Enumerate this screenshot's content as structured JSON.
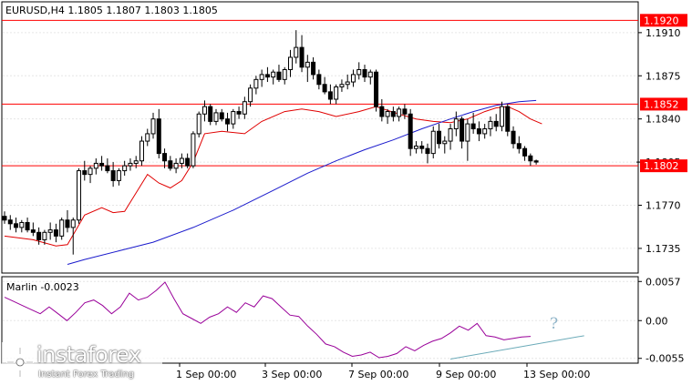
{
  "chart_data": [
    {
      "type": "candlestick",
      "title": "EURUSD,H4  1.1805 1.1807 1.1803 1.1805",
      "symbol": "EURUSD",
      "timeframe": "H4",
      "ohlc_header": {
        "open": 1.1805,
        "high": 1.1807,
        "low": 1.1803,
        "close": 1.1805
      },
      "x_labels": [
        "1 Sep 00:00",
        "3 Sep 00:00",
        "7 Sep 00:00",
        "9 Sep 00:00",
        "13 Sep 00:00"
      ],
      "y_ticks": [
        1.191,
        1.1875,
        1.184,
        1.1805,
        1.177,
        1.1735
      ],
      "ylim": [
        1.1715,
        1.1935
      ],
      "levels": [
        {
          "value": 1.192,
          "label": "1.1920",
          "color": "#ff0000"
        },
        {
          "value": 1.1852,
          "label": "1.1852",
          "color": "#ff0000"
        },
        {
          "value": 1.1802,
          "label": "1.1802",
          "color": "#ff0000"
        }
      ],
      "current_price": 1.1805,
      "candles": [
        [
          1.1761,
          1.1765,
          1.1755,
          1.1758
        ],
        [
          1.1758,
          1.1762,
          1.175,
          1.1755
        ],
        [
          1.1755,
          1.176,
          1.1748,
          1.1752
        ],
        [
          1.1752,
          1.1758,
          1.1748,
          1.1756
        ],
        [
          1.1756,
          1.176,
          1.1748,
          1.175
        ],
        [
          1.175,
          1.1756,
          1.1745,
          1.1748
        ],
        [
          1.1748,
          1.1752,
          1.1738,
          1.1742
        ],
        [
          1.1742,
          1.175,
          1.1738,
          1.1748
        ],
        [
          1.1748,
          1.1756,
          1.1742,
          1.175
        ],
        [
          1.175,
          1.1755,
          1.174,
          1.1745
        ],
        [
          1.1745,
          1.176,
          1.1742,
          1.1758
        ],
        [
          1.1758,
          1.1766,
          1.1748,
          1.1752
        ],
        [
          1.1752,
          1.176,
          1.173,
          1.1758
        ],
        [
          1.1758,
          1.18,
          1.1755,
          1.1798
        ],
        [
          1.1798,
          1.1806,
          1.179,
          1.1795
        ],
        [
          1.1795,
          1.1802,
          1.1788,
          1.18
        ],
        [
          1.18,
          1.1808,
          1.1795,
          1.1804
        ],
        [
          1.1804,
          1.181,
          1.1798,
          1.1802
        ],
        [
          1.1802,
          1.1808,
          1.1796,
          1.1798
        ],
        [
          1.1798,
          1.1805,
          1.1785,
          1.179
        ],
        [
          1.179,
          1.18,
          1.1786,
          1.1798
        ],
        [
          1.1798,
          1.1806,
          1.1794,
          1.1802
        ],
        [
          1.1802,
          1.1808,
          1.1798,
          1.1804
        ],
        [
          1.1804,
          1.181,
          1.18,
          1.1806
        ],
        [
          1.1806,
          1.1826,
          1.1802,
          1.1822
        ],
        [
          1.1822,
          1.1832,
          1.1818,
          1.1828
        ],
        [
          1.1828,
          1.1845,
          1.1824,
          1.184
        ],
        [
          1.184,
          1.1848,
          1.1808,
          1.1812
        ],
        [
          1.1812,
          1.1816,
          1.18,
          1.1806
        ],
        [
          1.1806,
          1.181,
          1.1798,
          1.18
        ],
        [
          1.18,
          1.1808,
          1.1796,
          1.1804
        ],
        [
          1.1804,
          1.1812,
          1.18,
          1.1808
        ],
        [
          1.1808,
          1.1812,
          1.18,
          1.1802
        ],
        [
          1.1802,
          1.183,
          1.18,
          1.1828
        ],
        [
          1.1828,
          1.1846,
          1.1825,
          1.1844
        ],
        [
          1.1844,
          1.1855,
          1.1838,
          1.185
        ],
        [
          1.185,
          1.1852,
          1.1835,
          1.1838
        ],
        [
          1.1838,
          1.1848,
          1.1835,
          1.1845
        ],
        [
          1.1845,
          1.1848,
          1.1838,
          1.184
        ],
        [
          1.184,
          1.1845,
          1.183,
          1.1836
        ],
        [
          1.1836,
          1.1848,
          1.1832,
          1.1846
        ],
        [
          1.1846,
          1.185,
          1.184,
          1.1844
        ],
        [
          1.1844,
          1.1858,
          1.184,
          1.1854
        ],
        [
          1.1854,
          1.1868,
          1.185,
          1.1865
        ],
        [
          1.1865,
          1.1875,
          1.186,
          1.1872
        ],
        [
          1.1872,
          1.188,
          1.1866,
          1.1876
        ],
        [
          1.1876,
          1.1882,
          1.187,
          1.1874
        ],
        [
          1.1874,
          1.188,
          1.1868,
          1.1878
        ],
        [
          1.1878,
          1.1884,
          1.187,
          1.1872
        ],
        [
          1.1872,
          1.1882,
          1.1868,
          1.188
        ],
        [
          1.188,
          1.1896,
          1.1874,
          1.189
        ],
        [
          1.189,
          1.1912,
          1.1885,
          1.1898
        ],
        [
          1.1898,
          1.1908,
          1.1878,
          1.1882
        ],
        [
          1.1882,
          1.1892,
          1.187,
          1.1886
        ],
        [
          1.1886,
          1.189,
          1.1872,
          1.1876
        ],
        [
          1.1876,
          1.188,
          1.1864,
          1.1868
        ],
        [
          1.1868,
          1.1874,
          1.186,
          1.1862
        ],
        [
          1.1862,
          1.1868,
          1.1852,
          1.1856
        ],
        [
          1.1856,
          1.1868,
          1.1852,
          1.1866
        ],
        [
          1.1866,
          1.1872,
          1.1862,
          1.1868
        ],
        [
          1.1868,
          1.1876,
          1.1864,
          1.187
        ],
        [
          1.187,
          1.188,
          1.1866,
          1.1876
        ],
        [
          1.1876,
          1.1886,
          1.1872,
          1.188
        ],
        [
          1.188,
          1.1884,
          1.187,
          1.1874
        ],
        [
          1.1874,
          1.188,
          1.1868,
          1.1878
        ],
        [
          1.1878,
          1.188,
          1.1846,
          1.185
        ],
        [
          1.185,
          1.1856,
          1.1838,
          1.1842
        ],
        [
          1.1842,
          1.1848,
          1.1836,
          1.1846
        ],
        [
          1.1846,
          1.185,
          1.1838,
          1.1842
        ],
        [
          1.1842,
          1.185,
          1.1838,
          1.1848
        ],
        [
          1.1848,
          1.1852,
          1.184,
          1.1844
        ],
        [
          1.1844,
          1.1848,
          1.181,
          1.1816
        ],
        [
          1.1816,
          1.1822,
          1.1812,
          1.1818
        ],
        [
          1.1818,
          1.1822,
          1.1812,
          1.1816
        ],
        [
          1.1816,
          1.182,
          1.1804,
          1.1812
        ],
        [
          1.1812,
          1.1834,
          1.1808,
          1.183
        ],
        [
          1.183,
          1.1836,
          1.1816,
          1.182
        ],
        [
          1.182,
          1.1826,
          1.1812,
          1.1822
        ],
        [
          1.1822,
          1.1836,
          1.1815,
          1.1832
        ],
        [
          1.1832,
          1.1846,
          1.1826,
          1.184
        ],
        [
          1.184,
          1.1842,
          1.1816,
          1.1822
        ],
        [
          1.1822,
          1.184,
          1.1806,
          1.1836
        ],
        [
          1.1836,
          1.1845,
          1.1828,
          1.1832
        ],
        [
          1.1832,
          1.1838,
          1.1822,
          1.1828
        ],
        [
          1.1828,
          1.1836,
          1.1824,
          1.1832
        ],
        [
          1.1832,
          1.1842,
          1.1826,
          1.1838
        ],
        [
          1.1838,
          1.1844,
          1.183,
          1.1834
        ],
        [
          1.1834,
          1.1854,
          1.183,
          1.185
        ],
        [
          1.185,
          1.1852,
          1.1826,
          1.183
        ],
        [
          1.183,
          1.1834,
          1.1816,
          1.182
        ],
        [
          1.182,
          1.1826,
          1.1812,
          1.1816
        ],
        [
          1.1816,
          1.1818,
          1.1806,
          1.181
        ],
        [
          1.181,
          1.1812,
          1.1802,
          1.1806
        ],
        [
          1.1806,
          1.1807,
          1.1803,
          1.1805
        ]
      ],
      "series": [
        {
          "type": "line",
          "color": "#e00000",
          "points": [
            [
              0,
              1.1745
            ],
            [
              5,
              1.1742
            ],
            [
              9,
              1.1737
            ],
            [
              11,
              1.1738
            ],
            [
              14,
              1.1762
            ],
            [
              17,
              1.1768
            ],
            [
              19,
              1.1764
            ],
            [
              21,
              1.1765
            ],
            [
              23,
              1.178
            ],
            [
              25,
              1.1795
            ],
            [
              27,
              1.1788
            ],
            [
              29,
              1.1784
            ],
            [
              31,
              1.179
            ],
            [
              33,
              1.1805
            ],
            [
              35,
              1.1828
            ],
            [
              38,
              1.183
            ],
            [
              42,
              1.1828
            ],
            [
              45,
              1.1838
            ],
            [
              49,
              1.1846
            ],
            [
              52,
              1.1848
            ],
            [
              55,
              1.1846
            ],
            [
              58,
              1.1842
            ],
            [
              62,
              1.1846
            ],
            [
              65,
              1.185
            ],
            [
              69,
              1.1844
            ],
            [
              72,
              1.184
            ],
            [
              75,
              1.1838
            ],
            [
              78,
              1.1837
            ],
            [
              81,
              1.184
            ],
            [
              84,
              1.1846
            ],
            [
              86,
              1.1849
            ],
            [
              88,
              1.185
            ],
            [
              90,
              1.1846
            ],
            [
              92,
              1.184
            ],
            [
              94,
              1.1836
            ]
          ]
        },
        {
          "type": "line",
          "color": "#1a1acc",
          "points": [
            [
              11,
              1.1722
            ],
            [
              14,
              1.1726
            ],
            [
              20,
              1.1733
            ],
            [
              26,
              1.174
            ],
            [
              33,
              1.1752
            ],
            [
              40,
              1.1766
            ],
            [
              47,
              1.1782
            ],
            [
              53,
              1.1796
            ],
            [
              58,
              1.1806
            ],
            [
              63,
              1.1815
            ],
            [
              68,
              1.1823
            ],
            [
              73,
              1.1832
            ],
            [
              78,
              1.184
            ],
            [
              82,
              1.1846
            ],
            [
              86,
              1.1851
            ],
            [
              90,
              1.1854
            ],
            [
              93,
              1.1855
            ]
          ]
        }
      ]
    },
    {
      "type": "line",
      "title": "Marlin -0.0023",
      "indicator": "Marlin",
      "current_value": -0.0023,
      "y_ticks": [
        0.0057,
        0.0,
        -0.0055
      ],
      "y_tick_labels": [
        "0.0057",
        "0.00",
        "-0.0055"
      ],
      "ylim": [
        -0.0062,
        0.0064
      ],
      "series": [
        {
          "color": "#990099",
          "values": [
            0.0034,
            0.0028,
            0.0022,
            0.0016,
            0.001,
            0.002,
            0.001,
            0.0,
            0.0012,
            0.0026,
            0.003,
            0.0022,
            0.001,
            0.002,
            0.004,
            0.003,
            0.0034,
            0.0044,
            0.0056,
            0.0032,
            0.001,
            0.0003,
            -0.0004,
            0.0005,
            0.001,
            0.002,
            0.0012,
            0.0026,
            0.002,
            0.0036,
            0.0032,
            0.002,
            0.0008,
            0.0006,
            -0.0008,
            -0.002,
            -0.0034,
            -0.0038,
            -0.0046,
            -0.0052,
            -0.005,
            -0.0046,
            -0.0054,
            -0.0052,
            -0.0048,
            -0.0038,
            -0.0044,
            -0.0036,
            -0.003,
            -0.0026,
            -0.0018,
            -0.0008,
            -0.0014,
            -0.0004,
            -0.0022,
            -0.0024,
            -0.0028,
            -0.0026,
            -0.0024,
            -0.0023
          ]
        }
      ],
      "trendline": {
        "color": "#6aaab8",
        "from": [
          50,
          -0.0056
        ],
        "to": [
          65,
          -0.0022
        ]
      },
      "annotation": "?"
    }
  ],
  "watermark": {
    "brand": "instaforex",
    "tagline": "Instant Forex Trading"
  }
}
